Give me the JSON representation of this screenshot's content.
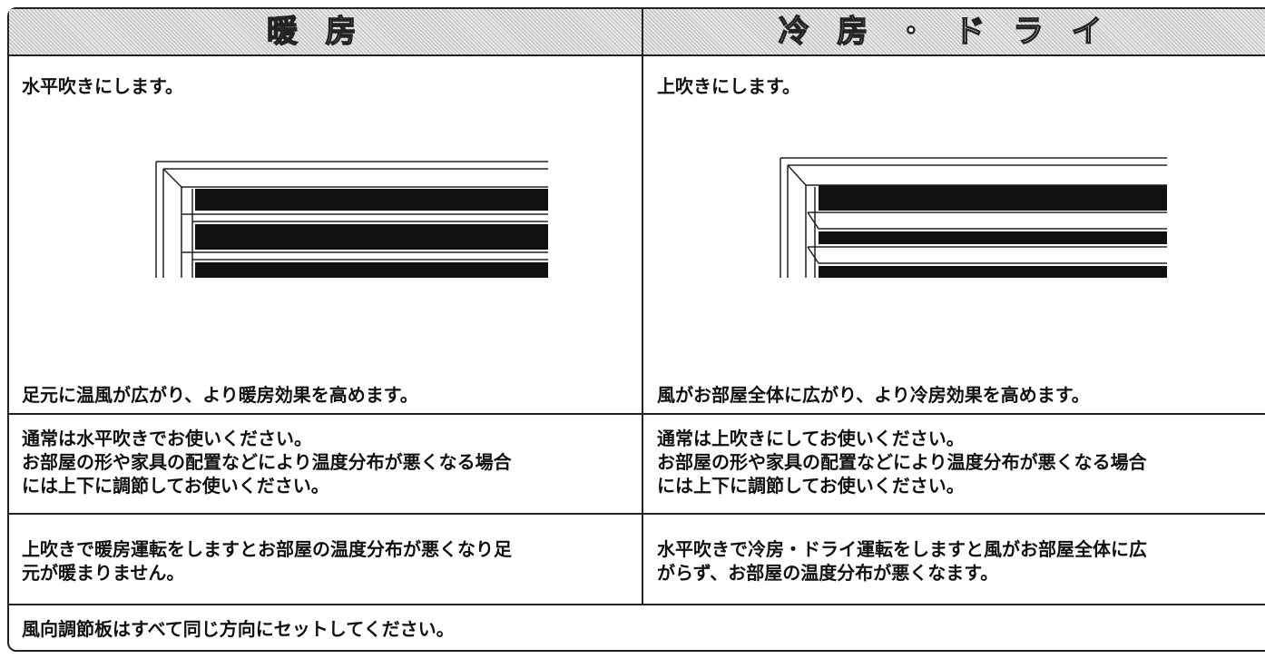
{
  "table": {
    "header": [
      "暖房",
      "冷房・ドライ"
    ],
    "rows": [
      [
        {
          "lead": "水平吹きにします。",
          "effect": "足元に温風が広がり、より暖房効果を高めます。"
        },
        {
          "lead": "上吹きにします。",
          "effect": "風がお部屋全体に広がり、より冷房効果を高めます。"
        }
      ],
      [
        [
          "通常は水平吹きでお使いください。",
          "お部屋の形や家具の配置などにより温度分布が悪くなる場合",
          "には上下に調節してお使いください。"
        ],
        [
          "通常は上吹きにしてお使いください。",
          "お部屋の形や家具の配置などにより温度分布が悪くなる場合",
          "には上下に調節してお使いください。"
        ]
      ],
      [
        [
          "上吹きで暖房運転をしますとお部屋の温度分布が悪くなり足",
          "元が暖まりません。"
        ],
        [
          "水平吹きで冷房・ドライ運転をしますと風がお部屋全体に広",
          "がらず、お部屋の温度分布が悪くなます。"
        ]
      ]
    ],
    "footer": "風向調節板はすべて同じ方向にセットしてください。"
  }
}
